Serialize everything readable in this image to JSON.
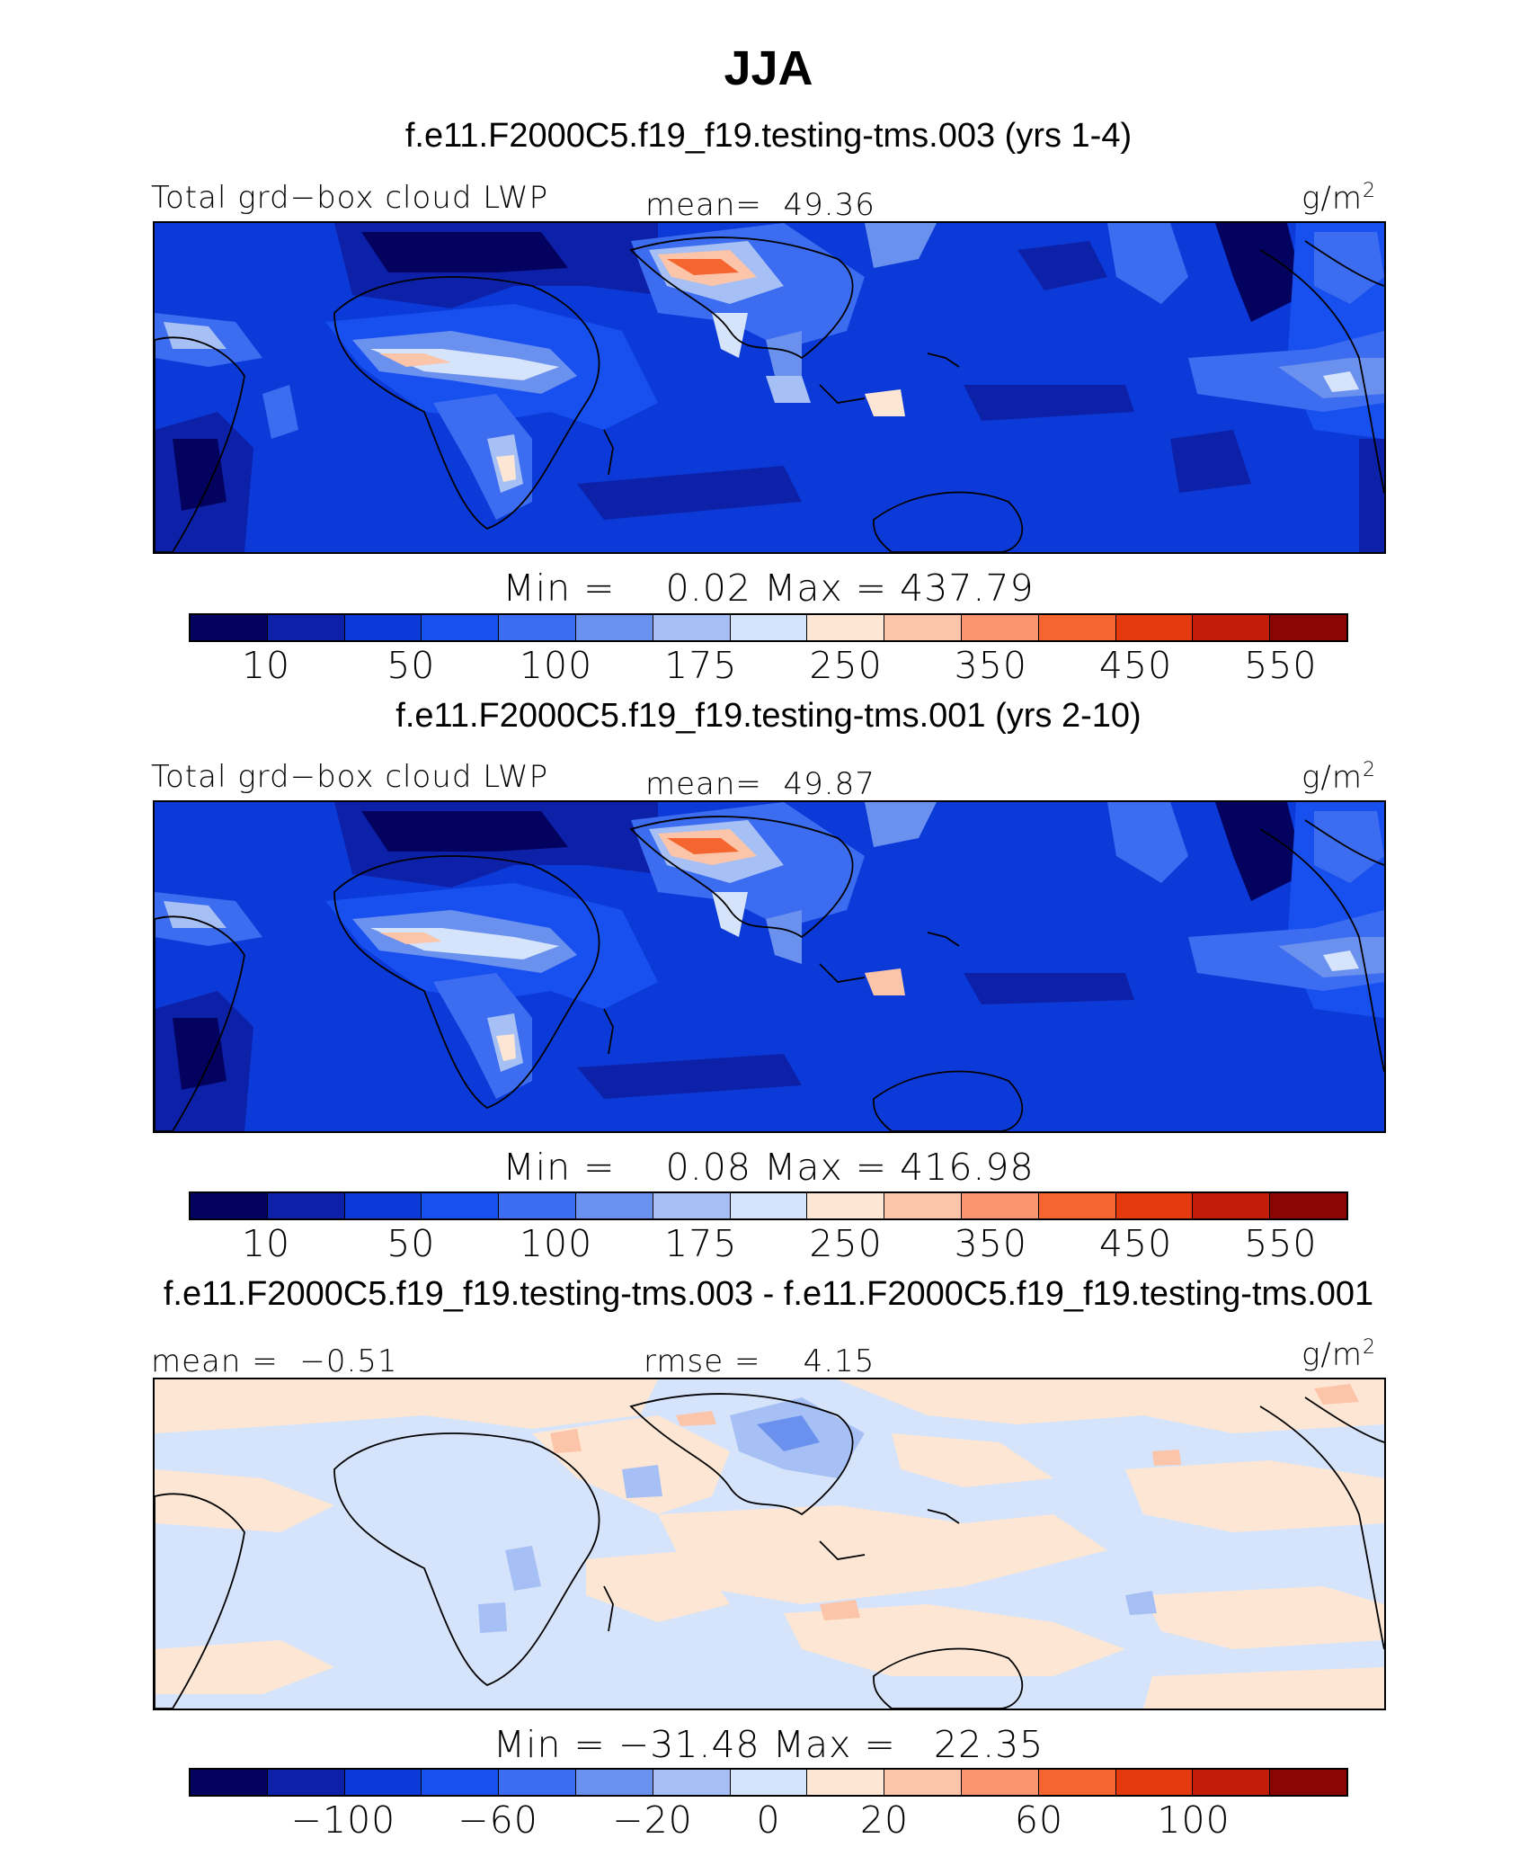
{
  "title": "JJA",
  "colors": {
    "level_scale": [
      "#03035f",
      "#0d21a8",
      "#0b3ad8",
      "#1850f0",
      "#3c6cf0",
      "#6b91ef",
      "#a6c0f5",
      "#d5e4fb",
      "#fde7d4",
      "#fcc4a8",
      "#f99670",
      "#f5652f",
      "#e43a0e",
      "#c31c09",
      "#8a0605"
    ],
    "land_outline": "#000000"
  },
  "panels": [
    {
      "case_title": "f.e11.F2000C5.f19_f19.testing-tms.003 (yrs 1-4)",
      "left_label": "Total grd−box cloud LWP",
      "center_label": "mean=  49.36",
      "units": "g/m",
      "units_sup": "2",
      "minmax": "Min =    0.02 Max = 437.79",
      "colorbar_labels": [
        "10",
        "50",
        "100",
        "175",
        "250",
        "350",
        "450",
        "550"
      ]
    },
    {
      "case_title": "f.e11.F2000C5.f19_f19.testing-tms.001 (yrs 2-10)",
      "left_label": "Total grd−box cloud LWP",
      "center_label": "mean=  49.87",
      "units": "g/m",
      "units_sup": "2",
      "minmax": "Min =    0.08 Max = 416.98",
      "colorbar_labels": [
        "10",
        "50",
        "100",
        "175",
        "250",
        "350",
        "450",
        "550"
      ]
    },
    {
      "case_title": "f.e11.F2000C5.f19_f19.testing-tms.003 - f.e11.F2000C5.f19_f19.testing-tms.001",
      "left_label": "mean =  −0.51",
      "center_label": "rmse =    4.15",
      "units": "g/m",
      "units_sup": "2",
      "minmax": "Min = −31.48 Max =   22.35",
      "colorbar_labels": [
        "−100",
        "−60",
        "−20",
        "0",
        "20",
        "60",
        "100"
      ]
    }
  ]
}
